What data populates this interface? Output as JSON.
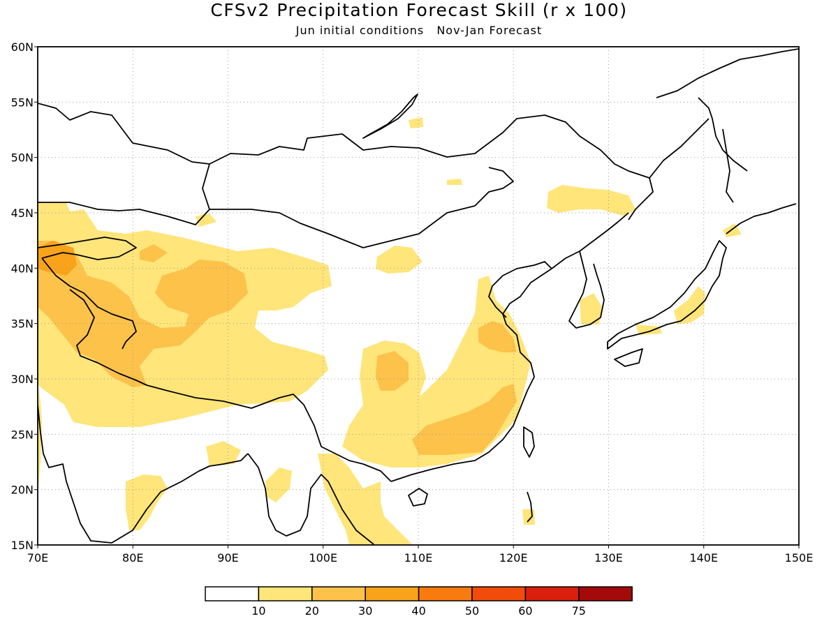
{
  "title": "CFSv2 Precipitation Forecast Skill (r x 100)",
  "subtitle": {
    "part1": "Jun initial conditions",
    "part2": "Nov-Jan Forecast"
  },
  "map": {
    "lon_range": [
      70,
      150
    ],
    "lat_range": [
      15,
      60
    ],
    "lon_ticks": [
      "70E",
      "80E",
      "90E",
      "100E",
      "110E",
      "120E",
      "130E",
      "140E",
      "150E"
    ],
    "lat_ticks": [
      "15N",
      "20N",
      "25N",
      "30N",
      "35N",
      "40N",
      "45N",
      "50N",
      "55N",
      "60N"
    ],
    "gridlines": "dotted"
  },
  "colorbar": {
    "labels": [
      "10",
      "20",
      "30",
      "40",
      "50",
      "60",
      "75"
    ],
    "colors": [
      "#ffffff",
      "#ffe57a",
      "#fcc24a",
      "#f9a31a",
      "#f97b0f",
      "#f24c0a",
      "#d8200c",
      "#a40a0a"
    ]
  }
}
